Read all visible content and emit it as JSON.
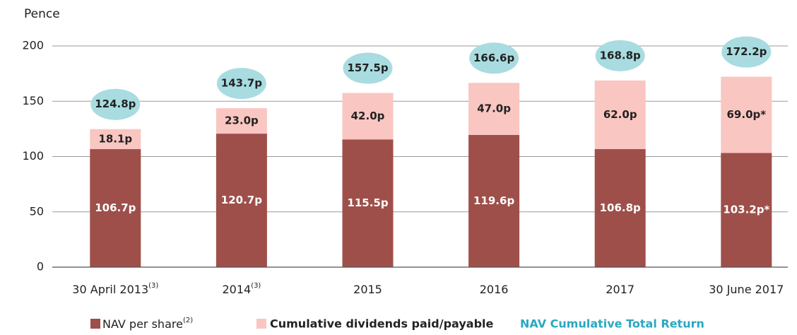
{
  "chart_data": {
    "type": "bar",
    "stacked": true,
    "y_axis_label": "Pence",
    "categories": [
      "30 April 2013",
      "2014",
      "2015",
      "2016",
      "2017",
      "30 June 2017"
    ],
    "category_notes": [
      "(3)",
      "(3)",
      null,
      null,
      null,
      null
    ],
    "series": [
      {
        "name": "NAV per share",
        "name_note": "(2)",
        "color": "#9e4f4a",
        "values": [
          106.7,
          120.7,
          115.5,
          119.6,
          106.8,
          103.2
        ],
        "value_labels": [
          "106.7p",
          "120.7p",
          "115.5p",
          "119.6p",
          "106.8p",
          "103.2p*"
        ]
      },
      {
        "name": "Cumulative dividends paid/payable",
        "color": "#f9c6c2",
        "values": [
          18.1,
          23.0,
          42.0,
          47.0,
          62.0,
          69.0
        ],
        "value_labels": [
          "18.1p",
          "23.0p",
          "42.0p",
          "47.0p",
          "62.0p",
          "69.0p*"
        ]
      }
    ],
    "totals": {
      "name": "NAV Cumulative Total Return",
      "color": "#a8dce0",
      "text_color": "#2aa7c0",
      "values": [
        124.8,
        143.7,
        157.5,
        166.6,
        168.8,
        172.2
      ],
      "value_labels": [
        "124.8p",
        "143.7p",
        "157.5p",
        "166.6p",
        "168.8p",
        "172.2p"
      ]
    },
    "ylim": [
      0,
      200
    ],
    "yticks": [
      0,
      50,
      100,
      150,
      200
    ],
    "grid": true
  }
}
